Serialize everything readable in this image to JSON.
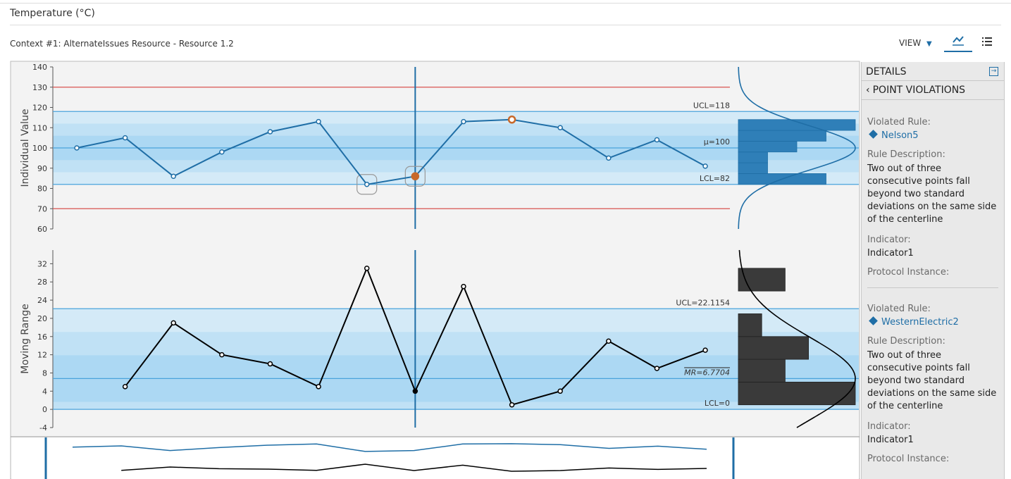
{
  "header": {
    "title": "Temperature (°C)",
    "context": "Context #1: AlternateIssues Resource - Resource 1.2",
    "view": "VIEW"
  },
  "chart_data": [
    {
      "type": "line",
      "y_label": "Individual Value",
      "categories": [
        null,
        null,
        null,
        null,
        null,
        null,
        null,
        null,
        null,
        null,
        null,
        null,
        null,
        null
      ],
      "values": [
        100,
        105,
        86,
        98,
        108,
        113,
        82,
        86,
        113,
        114,
        110,
        95,
        104,
        91
      ],
      "color": "#1f6ea6",
      "ylim": [
        60,
        140
      ],
      "yticks": [
        60,
        70,
        80,
        90,
        100,
        110,
        120,
        130,
        140
      ],
      "control_limits": [
        {
          "value": 118,
          "label": "UCL=118"
        },
        {
          "value": 100,
          "label": "μ=100"
        },
        {
          "value": 82,
          "label": "LCL=82"
        }
      ],
      "spec_limits": [
        70,
        130
      ],
      "spec_color": "#d9534f",
      "selected_index": 7,
      "highlighted_indices": [
        6,
        7
      ],
      "flagged_indices": [
        7,
        9
      ],
      "flag_color": "#c8692a"
    },
    {
      "type": "histogram",
      "bins": [
        82,
        87.33,
        92.67,
        98,
        103.33,
        108.67,
        114
      ],
      "counts": [
        3,
        1,
        1,
        2,
        3,
        4
      ],
      "color": "#2f7fb8"
    },
    {
      "type": "line",
      "y_label": "Moving Range",
      "categories": [
        null,
        null,
        null,
        null,
        null,
        null,
        null,
        null,
        null,
        null,
        null,
        null,
        null,
        null
      ],
      "values": [
        null,
        5,
        19,
        12,
        10,
        5,
        31,
        4,
        27,
        1,
        4,
        15,
        9,
        13
      ],
      "color": "#000000",
      "ylim": [
        -4,
        35
      ],
      "yticks": [
        -4,
        0,
        4,
        8,
        12,
        16,
        20,
        24,
        28,
        32
      ],
      "control_limits": [
        {
          "value": 22.1154,
          "label": "UCL=22.1154"
        },
        {
          "value": 6.7704,
          "label": "MR=6.7704"
        },
        {
          "value": 0,
          "label": "LCL=0"
        }
      ],
      "selected_index": 7
    },
    {
      "type": "histogram",
      "bins": [
        1,
        6,
        11,
        16,
        21,
        26,
        31
      ],
      "counts": [
        5,
        2,
        3,
        1,
        0,
        2
      ],
      "color": "#3a3a3a"
    }
  ],
  "details": {
    "title": "DETAILS",
    "subtitle": "POINT VIOLATIONS",
    "violations": [
      {
        "rule_label": "Violated Rule:",
        "rule": "Nelson5",
        "description_label": "Rule Description:",
        "description": "Two out of three consecutive points fall beyond two standard deviations on the same side of the centerline",
        "indicator_label": "Indicator:",
        "indicator": "Indicator1",
        "protocol_label": "Protocol Instance:"
      },
      {
        "rule_label": "Violated Rule:",
        "rule": "WesternElectric2",
        "description_label": "Rule Description:",
        "description": "Two out of three consecutive points fall beyond two standard deviations on the same side of the centerline",
        "indicator_label": "Indicator:",
        "indicator": "Indicator1",
        "protocol_label": "Protocol Instance:"
      }
    ]
  }
}
